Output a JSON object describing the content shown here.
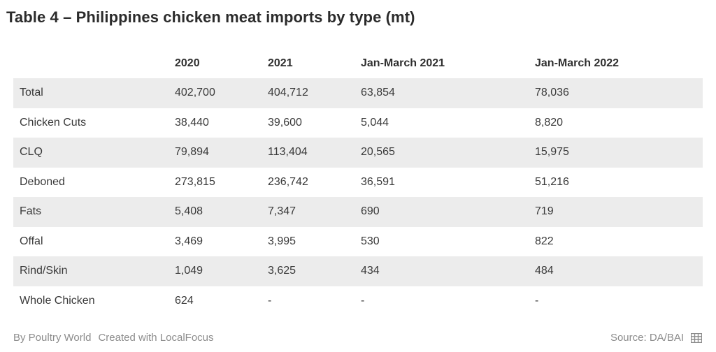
{
  "title": "Table 4 – Philippines chicken meat imports by type (mt)",
  "table": {
    "headers": [
      "",
      "2020",
      "2021",
      "Jan-March 2021",
      "Jan-March 2022"
    ],
    "rows": [
      [
        "Total",
        "402,700",
        "404,712",
        "63,854",
        "78,036"
      ],
      [
        "Chicken Cuts",
        "38,440",
        "39,600",
        "5,044",
        "8,820"
      ],
      [
        "CLQ",
        "79,894",
        "113,404",
        "20,565",
        "15,975"
      ],
      [
        "Deboned",
        "273,815",
        "236,742",
        "36,591",
        "51,216"
      ],
      [
        "Fats",
        "5,408",
        "7,347",
        "690",
        "719"
      ],
      [
        "Offal",
        "3,469",
        "3,995",
        "530",
        "822"
      ],
      [
        "Rind/Skin",
        "1,049",
        "3,625",
        "434",
        "484"
      ],
      [
        "Whole Chicken",
        "624",
        "-",
        "-",
        "-"
      ]
    ]
  },
  "footer": {
    "by": "By Poultry World",
    "created": "Created with LocalFocus",
    "source": "Source: DA/BAI",
    "icon": "table-icon"
  },
  "colors": {
    "row_shade": "#ececec",
    "text": "#3a3a3a",
    "footer_text": "#8c8c8c"
  }
}
